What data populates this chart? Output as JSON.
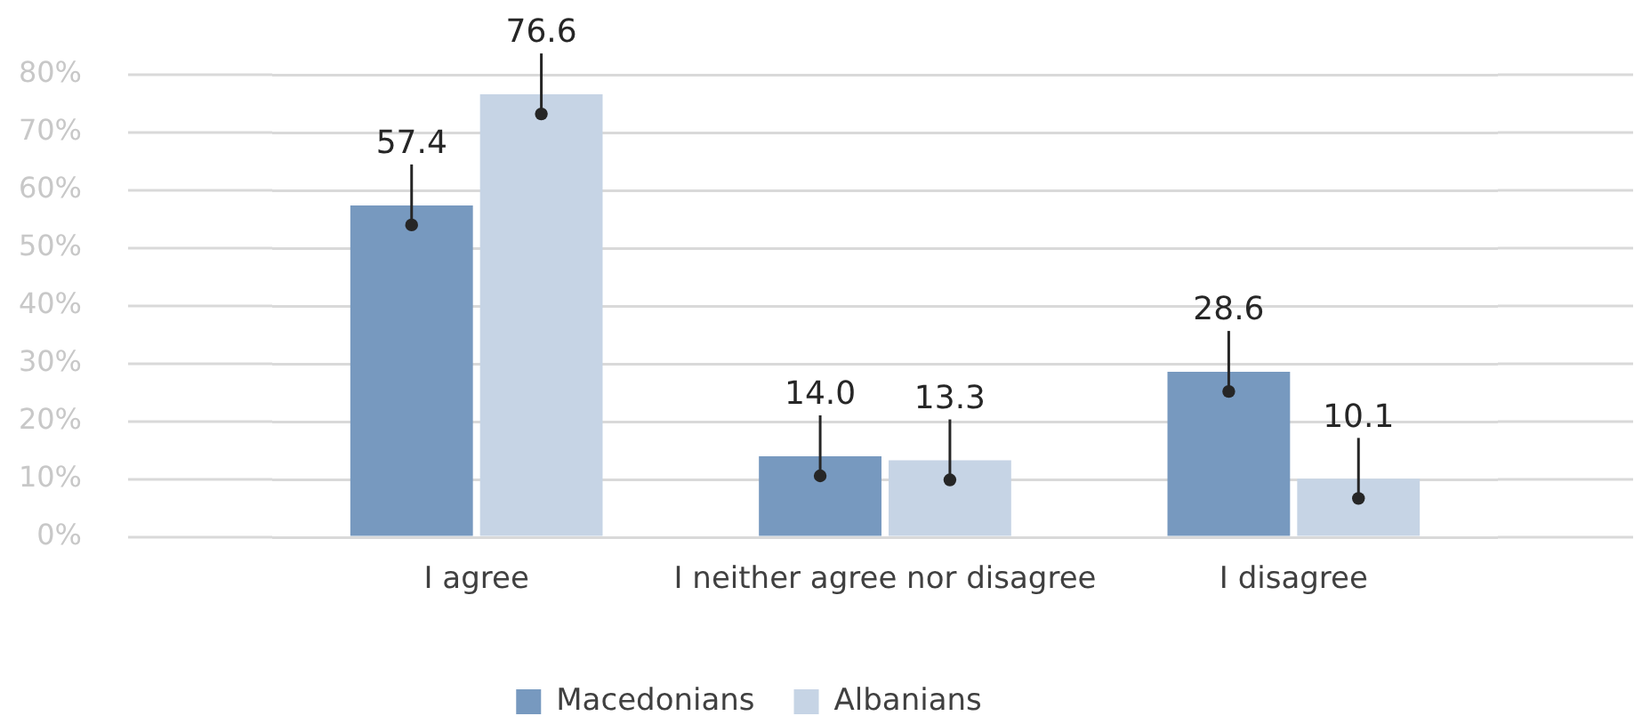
{
  "chart_data": {
    "type": "bar",
    "categories": [
      "I agree",
      "I neither agree nor disagree",
      "I disagree"
    ],
    "series": [
      {
        "name": "Macedonians",
        "color": "#7799bf",
        "values": [
          57.4,
          14.0,
          28.6
        ],
        "value_labels": [
          "57.4",
          "14.0",
          "28.6"
        ]
      },
      {
        "name": "Albanians",
        "color": "#c6d4e5",
        "values": [
          76.6,
          13.3,
          10.1
        ],
        "value_labels": [
          "76.6",
          "13.3",
          "10.1"
        ]
      }
    ],
    "ylim": [
      0,
      80
    ],
    "yticks": [
      {
        "value": 0,
        "label": "0%"
      },
      {
        "value": 10,
        "label": "10%"
      },
      {
        "value": 20,
        "label": "20%"
      },
      {
        "value": 30,
        "label": "30%"
      },
      {
        "value": 40,
        "label": "40%"
      },
      {
        "value": 50,
        "label": "50%"
      },
      {
        "value": 60,
        "label": "60%"
      },
      {
        "value": 70,
        "label": "70%"
      },
      {
        "value": 80,
        "label": "80%"
      }
    ],
    "grid": "y",
    "legend": "bottom"
  }
}
